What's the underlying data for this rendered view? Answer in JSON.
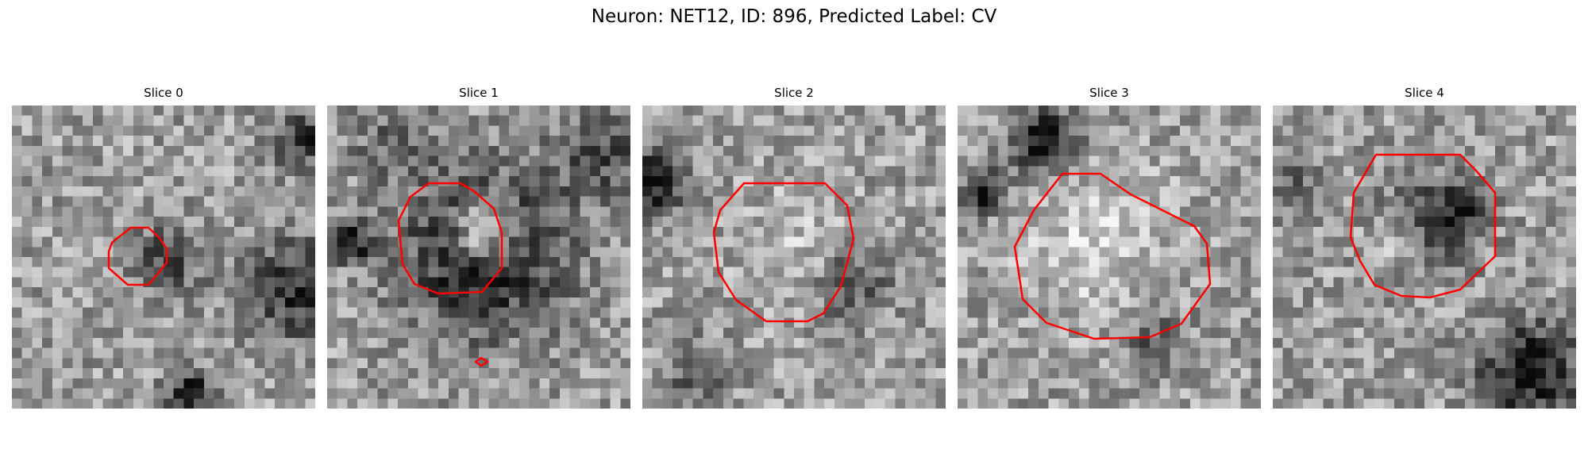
{
  "figure": {
    "title": "Neuron: NET12, ID: 896, Predicted Label: CV",
    "contour_color": "#ff0000",
    "colormap": "gray"
  },
  "slices": [
    {
      "title": "Slice 0"
    },
    {
      "title": "Slice 1"
    },
    {
      "title": "Slice 2"
    },
    {
      "title": "Slice 3"
    },
    {
      "title": "Slice 4"
    }
  ]
}
